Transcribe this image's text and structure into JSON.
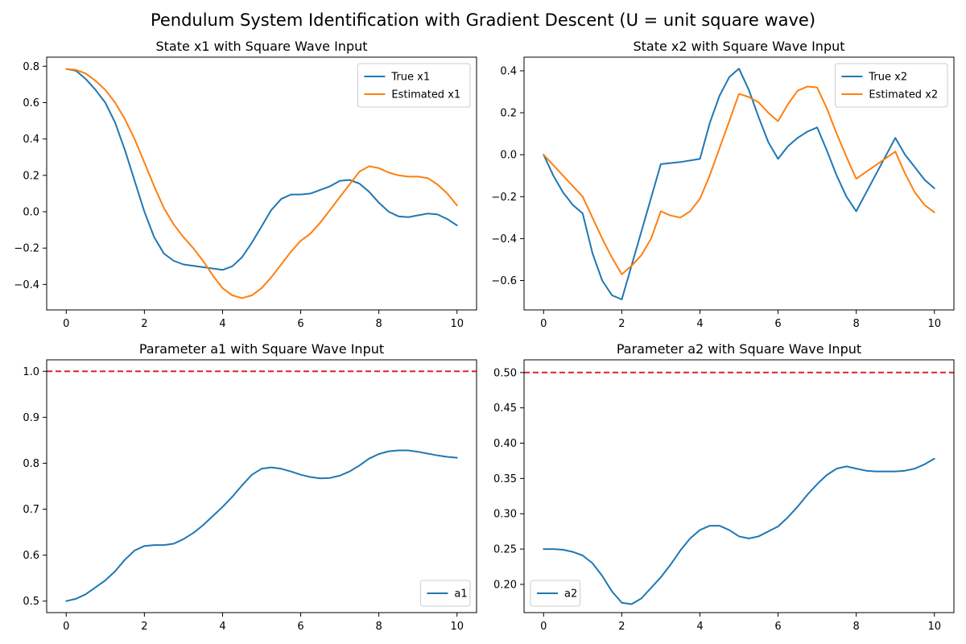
{
  "figure": {
    "suptitle": "Pendulum System Identification with Gradient Descent (U = unit square wave)"
  },
  "colors": {
    "blue": "#1f77b4",
    "orange": "#ff7f0e",
    "red": "#d62728"
  },
  "chart_data": [
    {
      "type": "line",
      "title": "State x1 with Square Wave Input",
      "xlabel": "",
      "ylabel": "",
      "xlim": [
        -0.5,
        10.5
      ],
      "ylim": [
        -0.54,
        0.85
      ],
      "xticks": [
        0,
        2,
        4,
        6,
        8,
        10
      ],
      "yticks": [
        -0.4,
        -0.2,
        0.0,
        0.2,
        0.4,
        0.6,
        0.8
      ],
      "ytick_labels": [
        "−0.4",
        "−0.2",
        "0.0",
        "0.2",
        "0.4",
        "0.6",
        "0.8"
      ],
      "grid": false,
      "legend": "top-right",
      "series": [
        {
          "name": "True x1",
          "color": "#1f77b4",
          "x": [
            0,
            0.25,
            0.5,
            0.75,
            1.0,
            1.25,
            1.5,
            1.75,
            2.0,
            2.25,
            2.5,
            2.75,
            3.0,
            3.5,
            4.0,
            4.25,
            4.5,
            4.75,
            5.0,
            5.25,
            5.5,
            5.75,
            6.0,
            6.25,
            6.5,
            6.75,
            7.0,
            7.25,
            7.5,
            7.75,
            8.0,
            8.25,
            8.5,
            8.75,
            9.0,
            9.25,
            9.5,
            9.75,
            10.0
          ],
          "y": [
            0.785,
            0.775,
            0.73,
            0.67,
            0.6,
            0.49,
            0.34,
            0.17,
            0.0,
            -0.14,
            -0.23,
            -0.27,
            -0.29,
            -0.305,
            -0.32,
            -0.3,
            -0.25,
            -0.17,
            -0.08,
            0.01,
            0.07,
            0.095,
            0.095,
            0.1,
            0.12,
            0.14,
            0.17,
            0.175,
            0.155,
            0.11,
            0.05,
            0.0,
            -0.025,
            -0.03,
            -0.02,
            -0.01,
            -0.015,
            -0.04,
            -0.075
          ]
        },
        {
          "name": "Estimated x1",
          "color": "#ff7f0e",
          "x": [
            0,
            0.25,
            0.5,
            0.75,
            1.0,
            1.25,
            1.5,
            1.75,
            2.0,
            2.25,
            2.5,
            2.75,
            3.0,
            3.25,
            3.5,
            3.75,
            4.0,
            4.25,
            4.5,
            4.75,
            5.0,
            5.25,
            5.5,
            5.75,
            6.0,
            6.25,
            6.5,
            6.75,
            7.0,
            7.25,
            7.5,
            7.75,
            8.0,
            8.25,
            8.5,
            8.75,
            9.0,
            9.25,
            9.5,
            9.75,
            10.0
          ],
          "y": [
            0.785,
            0.78,
            0.76,
            0.72,
            0.67,
            0.6,
            0.51,
            0.4,
            0.27,
            0.14,
            0.02,
            -0.07,
            -0.14,
            -0.2,
            -0.27,
            -0.35,
            -0.42,
            -0.46,
            -0.475,
            -0.46,
            -0.42,
            -0.36,
            -0.29,
            -0.22,
            -0.16,
            -0.12,
            -0.06,
            0.01,
            0.08,
            0.15,
            0.22,
            0.25,
            0.24,
            0.215,
            0.2,
            0.193,
            0.193,
            0.185,
            0.15,
            0.1,
            0.035
          ]
        }
      ]
    },
    {
      "type": "line",
      "title": "State x2 with Square Wave Input",
      "xlabel": "",
      "ylabel": "",
      "xlim": [
        -0.5,
        10.5
      ],
      "ylim": [
        -0.74,
        0.465
      ],
      "xticks": [
        0,
        2,
        4,
        6,
        8,
        10
      ],
      "yticks": [
        -0.6,
        -0.4,
        -0.2,
        0.0,
        0.2,
        0.4
      ],
      "ytick_labels": [
        "−0.6",
        "−0.4",
        "−0.2",
        "0.0",
        "0.2",
        "0.4"
      ],
      "grid": false,
      "legend": "top-right",
      "series": [
        {
          "name": "True x2",
          "color": "#1f77b4",
          "x": [
            0,
            0.25,
            0.5,
            0.75,
            1.0,
            1.25,
            1.5,
            1.75,
            2.0,
            3.0,
            3.5,
            4.0,
            4.25,
            4.5,
            4.75,
            5.0,
            5.25,
            5.5,
            5.75,
            6.0,
            6.25,
            6.5,
            6.75,
            7.0,
            7.25,
            7.5,
            7.75,
            8.0,
            9.0,
            9.25,
            9.5,
            9.75,
            10.0
          ],
          "y": [
            0.0,
            -0.1,
            -0.18,
            -0.24,
            -0.28,
            -0.47,
            -0.6,
            -0.67,
            -0.69,
            -0.045,
            -0.035,
            -0.02,
            0.15,
            0.28,
            0.37,
            0.41,
            0.31,
            0.18,
            0.06,
            -0.02,
            0.04,
            0.08,
            0.11,
            0.13,
            0.02,
            -0.1,
            -0.2,
            -0.27,
            0.08,
            0.0,
            -0.06,
            -0.12,
            -0.16
          ]
        },
        {
          "name": "Estimated x2",
          "color": "#ff7f0e",
          "x": [
            0,
            0.25,
            0.5,
            0.75,
            1.0,
            1.25,
            1.5,
            1.75,
            2.0,
            2.25,
            2.5,
            2.75,
            3.0,
            3.25,
            3.5,
            3.75,
            4.0,
            4.25,
            4.5,
            4.75,
            5.0,
            5.25,
            5.5,
            5.75,
            6.0,
            6.25,
            6.5,
            6.75,
            7.0,
            7.25,
            7.5,
            7.75,
            8.0,
            9.0,
            9.25,
            9.5,
            9.75,
            10.0
          ],
          "y": [
            0.0,
            -0.05,
            -0.1,
            -0.15,
            -0.2,
            -0.3,
            -0.4,
            -0.49,
            -0.57,
            -0.53,
            -0.48,
            -0.4,
            -0.27,
            -0.29,
            -0.3,
            -0.27,
            -0.21,
            -0.1,
            0.03,
            0.16,
            0.29,
            0.275,
            0.25,
            0.2,
            0.16,
            0.24,
            0.305,
            0.325,
            0.32,
            0.22,
            0.1,
            -0.01,
            -0.115,
            0.015,
            -0.09,
            -0.18,
            -0.24,
            -0.275
          ]
        }
      ]
    },
    {
      "type": "line",
      "title": "Parameter a1 with Square Wave Input",
      "xlabel": "",
      "ylabel": "",
      "xlim": [
        -0.5,
        10.5
      ],
      "ylim": [
        0.475,
        1.025
      ],
      "xticks": [
        0,
        2,
        4,
        6,
        8,
        10
      ],
      "yticks": [
        0.5,
        0.6,
        0.7,
        0.8,
        0.9,
        1.0
      ],
      "ytick_labels": [
        "0.5",
        "0.6",
        "0.7",
        "0.8",
        "0.9",
        "1.0"
      ],
      "grid": false,
      "legend": "bottom-right",
      "reference_line": {
        "y": 1.0,
        "color": "#d62728",
        "style": "dashed"
      },
      "series": [
        {
          "name": "a1",
          "color": "#1f77b4",
          "x": [
            0,
            0.25,
            0.5,
            0.75,
            1.0,
            1.25,
            1.5,
            1.75,
            2.0,
            2.25,
            2.5,
            2.75,
            3.0,
            3.25,
            3.5,
            3.75,
            4.0,
            4.25,
            4.5,
            4.75,
            5.0,
            5.25,
            5.5,
            5.75,
            6.0,
            6.25,
            6.5,
            6.75,
            7.0,
            7.25,
            7.5,
            7.75,
            8.0,
            8.25,
            8.5,
            8.75,
            9.0,
            9.25,
            9.5,
            9.75,
            10.0
          ],
          "y": [
            0.5,
            0.505,
            0.515,
            0.53,
            0.545,
            0.565,
            0.59,
            0.61,
            0.62,
            0.622,
            0.622,
            0.625,
            0.635,
            0.648,
            0.665,
            0.685,
            0.705,
            0.727,
            0.752,
            0.775,
            0.788,
            0.791,
            0.788,
            0.782,
            0.775,
            0.77,
            0.767,
            0.768,
            0.773,
            0.782,
            0.795,
            0.81,
            0.82,
            0.826,
            0.828,
            0.828,
            0.825,
            0.821,
            0.817,
            0.814,
            0.812
          ]
        }
      ]
    },
    {
      "type": "line",
      "title": "Parameter a2 with Square Wave Input",
      "xlabel": "",
      "ylabel": "",
      "xlim": [
        -0.5,
        10.5
      ],
      "ylim": [
        0.16,
        0.518
      ],
      "xticks": [
        0,
        2,
        4,
        6,
        8,
        10
      ],
      "yticks": [
        0.2,
        0.25,
        0.3,
        0.35,
        0.4,
        0.45,
        0.5
      ],
      "ytick_labels": [
        "0.20",
        "0.25",
        "0.30",
        "0.35",
        "0.40",
        "0.45",
        "0.50"
      ],
      "grid": false,
      "legend": "bottom-left",
      "reference_line": {
        "y": 0.5,
        "color": "#d62728",
        "style": "dashed"
      },
      "series": [
        {
          "name": "a2",
          "color": "#1f77b4",
          "x": [
            0,
            0.25,
            0.5,
            0.75,
            1.0,
            1.25,
            1.5,
            1.75,
            2.0,
            2.25,
            2.5,
            2.75,
            3.0,
            3.25,
            3.5,
            3.75,
            4.0,
            4.25,
            4.5,
            4.75,
            5.0,
            5.25,
            5.5,
            5.75,
            6.0,
            6.25,
            6.5,
            6.75,
            7.0,
            7.25,
            7.5,
            7.75,
            8.0,
            8.25,
            8.5,
            8.75,
            9.0,
            9.25,
            9.5,
            9.75,
            10.0
          ],
          "y": [
            0.25,
            0.25,
            0.249,
            0.246,
            0.241,
            0.23,
            0.212,
            0.19,
            0.174,
            0.172,
            0.18,
            0.195,
            0.21,
            0.228,
            0.248,
            0.265,
            0.277,
            0.283,
            0.283,
            0.277,
            0.268,
            0.265,
            0.268,
            0.275,
            0.282,
            0.295,
            0.31,
            0.327,
            0.342,
            0.355,
            0.364,
            0.367,
            0.364,
            0.361,
            0.36,
            0.36,
            0.36,
            0.361,
            0.364,
            0.37,
            0.378
          ]
        }
      ]
    }
  ]
}
